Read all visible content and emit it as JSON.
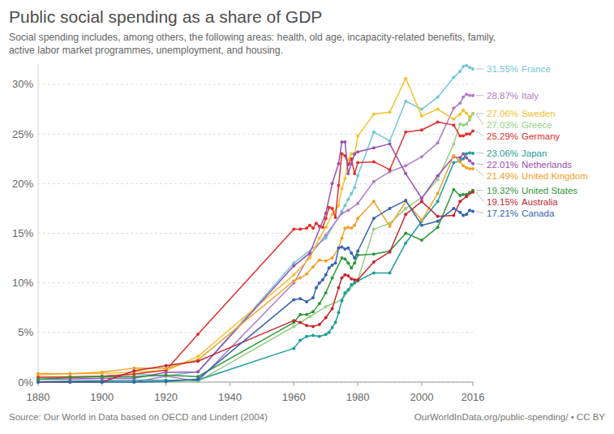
{
  "chart_data": {
    "type": "line",
    "title": "Public social spending as a share of GDP",
    "subtitle": [
      "Social spending includes, among others, the following areas: health, old age, incapacity-related benefits, family,",
      "active labor market programmes, unemployment, and housing."
    ],
    "annotations": [
      "Source: Our World in Data based on OECD and Lindert (2004)",
      "OurWorldInData.org/public-spending/ • CC BY"
    ],
    "xlim": [
      1880,
      2016
    ],
    "xticks": [
      1880,
      1900,
      1920,
      1940,
      1960,
      1980,
      2000,
      2016
    ],
    "ylim": [
      0,
      32
    ],
    "yticks": [
      {
        "value": 0,
        "label": "0%"
      },
      {
        "value": 5,
        "label": "5%"
      },
      {
        "value": 10,
        "label": "10%"
      },
      {
        "value": 15,
        "label": "15%"
      },
      {
        "value": 20,
        "label": "20%"
      },
      {
        "value": 25,
        "label": "25%"
      },
      {
        "value": 30,
        "label": "30%"
      }
    ],
    "grid": true,
    "marker": "circle",
    "series": [
      {
        "name": "France",
        "color": "#71c6d7",
        "x": [
          1880,
          1890,
          1900,
          1910,
          1920,
          1930,
          1960,
          1970,
          1975,
          1976,
          1977,
          1978,
          1979,
          1980,
          1985,
          1990,
          1995,
          2000,
          2005,
          2010,
          2012,
          2013,
          2014,
          2015,
          2016
        ],
        "values": [
          0.46,
          0.5,
          0.57,
          0.81,
          0.64,
          1.05,
          12.0,
          14.5,
          17.2,
          17.8,
          18.4,
          19.0,
          19.6,
          20.8,
          25.2,
          24.3,
          28.3,
          27.5,
          28.7,
          30.7,
          31.3,
          31.8,
          31.9,
          31.7,
          31.55
        ],
        "value_labels": [
          null,
          null,
          null,
          null,
          null,
          null,
          null,
          null,
          null,
          null,
          null,
          null,
          null,
          null,
          null,
          null,
          null,
          null,
          null,
          null,
          null,
          null,
          null,
          null,
          "31.55%"
        ]
      },
      {
        "name": "Italy",
        "color": "#b07cc6",
        "x": [
          1880,
          1890,
          1900,
          1910,
          1920,
          1930,
          1960,
          1965,
          1970,
          1975,
          1977,
          1980,
          1985,
          1990,
          1995,
          2000,
          2005,
          2010,
          2012,
          2013,
          2014,
          2015,
          2016
        ],
        "values": [
          0.0,
          0.0,
          0.0,
          0.0,
          0.6,
          0.08,
          10.0,
          12.8,
          14.8,
          17.0,
          17.3,
          18.0,
          20.2,
          21.2,
          21.8,
          22.7,
          24.1,
          27.6,
          28.1,
          28.7,
          29.0,
          28.9,
          28.87
        ],
        "value_labels": [
          null,
          null,
          null,
          null,
          null,
          null,
          null,
          null,
          null,
          null,
          null,
          null,
          null,
          null,
          null,
          null,
          null,
          null,
          null,
          null,
          null,
          null,
          "28.87%"
        ]
      },
      {
        "name": "Sweden",
        "color": "#f2c12e",
        "x": [
          1880,
          1890,
          1900,
          1910,
          1920,
          1930,
          1960,
          1965,
          1968,
          1970,
          1972,
          1974,
          1975,
          1976,
          1977,
          1978,
          1979,
          1980,
          1985,
          1990,
          1995,
          2000,
          2005,
          2010,
          2012,
          2013,
          2014,
          2015,
          2016
        ],
        "values": [
          0.72,
          0.85,
          0.85,
          1.03,
          1.14,
          2.59,
          10.8,
          12.5,
          14.5,
          15.6,
          16.9,
          17.8,
          19.5,
          20.5,
          22.4,
          23.0,
          22.9,
          24.8,
          27.0,
          27.2,
          30.6,
          26.8,
          27.5,
          26.5,
          27.0,
          27.4,
          27.1,
          26.7,
          27.06
        ],
        "value_labels": [
          null,
          null,
          null,
          null,
          null,
          null,
          null,
          null,
          null,
          null,
          null,
          null,
          null,
          null,
          null,
          null,
          null,
          null,
          null,
          null,
          null,
          null,
          null,
          null,
          null,
          null,
          null,
          null,
          "27.06%"
        ]
      },
      {
        "name": "Greece",
        "color": "#97cf86",
        "x": [
          1880,
          1890,
          1900,
          1910,
          1920,
          1930,
          1960,
          1965,
          1970,
          1975,
          1980,
          1985,
          1990,
          1995,
          2000,
          2005,
          2010,
          2012,
          2013,
          2014,
          2015,
          2016
        ],
        "values": [
          0.0,
          0.0,
          0.0,
          0.0,
          0.0,
          0.07,
          5.6,
          6.6,
          7.6,
          8.3,
          10.3,
          15.4,
          16.0,
          17.5,
          18.6,
          20.4,
          24.0,
          26.0,
          25.9,
          26.0,
          26.4,
          27.03
        ],
        "value_labels": [
          null,
          null,
          null,
          null,
          null,
          null,
          null,
          null,
          null,
          null,
          null,
          null,
          null,
          null,
          null,
          null,
          null,
          null,
          null,
          null,
          null,
          "27.03%"
        ]
      },
      {
        "name": "Germany",
        "color": "#e0302a",
        "x": [
          1880,
          1890,
          1900,
          1910,
          1920,
          1930,
          1960,
          1962,
          1964,
          1965,
          1966,
          1967,
          1968,
          1969,
          1970,
          1971,
          1972,
          1973,
          1974,
          1975,
          1976,
          1977,
          1978,
          1979,
          1980,
          1985,
          1990,
          1995,
          2000,
          2005,
          2010,
          2012,
          2013,
          2014,
          2015,
          2016
        ],
        "values": [
          0.5,
          0.53,
          0.59,
          0.8,
          1.2,
          4.82,
          15.4,
          15.4,
          15.5,
          15.8,
          15.5,
          16.0,
          15.7,
          15.6,
          16.5,
          17.6,
          17.5,
          16.6,
          19.8,
          23.0,
          22.8,
          21.9,
          22.5,
          21.0,
          22.1,
          22.2,
          21.4,
          25.2,
          25.4,
          26.2,
          25.9,
          24.8,
          24.8,
          25.0,
          25.0,
          25.29
        ],
        "value_labels": [
          null,
          null,
          null,
          null,
          null,
          null,
          null,
          null,
          null,
          null,
          null,
          null,
          null,
          null,
          null,
          null,
          null,
          null,
          null,
          null,
          null,
          null,
          null,
          null,
          null,
          null,
          null,
          null,
          null,
          null,
          null,
          null,
          null,
          null,
          null,
          "25.29%"
        ]
      },
      {
        "name": "Japan",
        "color": "#1f9c9c",
        "x": [
          1880,
          1890,
          1900,
          1910,
          1920,
          1930,
          1960,
          1962,
          1964,
          1966,
          1968,
          1970,
          1971,
          1972,
          1973,
          1974,
          1975,
          1976,
          1977,
          1978,
          1979,
          1980,
          1985,
          1990,
          1995,
          2000,
          2005,
          2010,
          2012,
          2013,
          2014,
          2015,
          2016
        ],
        "values": [
          0.05,
          0.11,
          0.17,
          0.18,
          0.18,
          0.21,
          3.4,
          4.2,
          4.6,
          4.7,
          4.6,
          4.8,
          5.0,
          5.5,
          6.0,
          7.0,
          8.2,
          9.0,
          9.3,
          9.8,
          10.0,
          10.2,
          11.0,
          11.0,
          14.0,
          16.2,
          18.2,
          22.1,
          22.3,
          22.5,
          23.0,
          23.1,
          23.06
        ],
        "value_labels": [
          null,
          null,
          null,
          null,
          null,
          null,
          null,
          null,
          null,
          null,
          null,
          null,
          null,
          null,
          null,
          null,
          null,
          null,
          null,
          null,
          null,
          null,
          null,
          null,
          null,
          null,
          null,
          null,
          null,
          null,
          null,
          null,
          "23.06%"
        ]
      },
      {
        "name": "Netherlands",
        "color": "#9a4fb0",
        "x": [
          1880,
          1890,
          1900,
          1910,
          1920,
          1930,
          1960,
          1965,
          1970,
          1972,
          1974,
          1975,
          1976,
          1977,
          1978,
          1979,
          1980,
          1985,
          1990,
          1995,
          2000,
          2005,
          2010,
          2012,
          2013,
          2014,
          2015,
          2016
        ],
        "values": [
          0.29,
          0.3,
          0.39,
          0.39,
          0.99,
          1.03,
          11.7,
          13.0,
          17.0,
          20.0,
          22.0,
          24.2,
          24.2,
          21.0,
          22.0,
          23.0,
          23.2,
          23.6,
          24.0,
          21.0,
          18.5,
          20.8,
          22.7,
          22.6,
          23.0,
          22.6,
          22.3,
          22.01
        ],
        "value_labels": [
          null,
          null,
          null,
          null,
          null,
          null,
          null,
          null,
          null,
          null,
          null,
          null,
          null,
          null,
          null,
          null,
          null,
          null,
          null,
          null,
          null,
          null,
          null,
          null,
          null,
          null,
          null,
          "22.01%"
        ]
      },
      {
        "name": "United Kingdom",
        "color": "#f0a12a",
        "x": [
          1880,
          1890,
          1900,
          1910,
          1920,
          1930,
          1960,
          1962,
          1964,
          1966,
          1968,
          1970,
          1972,
          1974,
          1975,
          1976,
          1977,
          1978,
          1979,
          1980,
          1985,
          1990,
          1995,
          2000,
          2005,
          2010,
          2012,
          2013,
          2014,
          2015,
          2016
        ],
        "values": [
          0.86,
          0.83,
          1.0,
          1.4,
          1.39,
          2.24,
          10.2,
          10.5,
          10.9,
          11.6,
          12.3,
          12.2,
          12.5,
          13.5,
          14.5,
          15.5,
          15.6,
          15.5,
          15.8,
          16.5,
          18.2,
          15.7,
          18.2,
          16.3,
          19.0,
          22.8,
          22.2,
          21.8,
          21.6,
          21.5,
          21.49
        ],
        "value_labels": [
          null,
          null,
          null,
          null,
          null,
          null,
          null,
          null,
          null,
          null,
          null,
          null,
          null,
          null,
          null,
          null,
          null,
          null,
          null,
          null,
          null,
          null,
          null,
          null,
          null,
          null,
          null,
          null,
          null,
          null,
          "21.49%"
        ]
      },
      {
        "name": "United States",
        "color": "#2e973a",
        "x": [
          1880,
          1890,
          1900,
          1910,
          1920,
          1930,
          1960,
          1962,
          1964,
          1966,
          1968,
          1970,
          1972,
          1975,
          1976,
          1977,
          1978,
          1979,
          1980,
          1985,
          1990,
          1995,
          2000,
          2005,
          2010,
          2012,
          2013,
          2014,
          2015,
          2016
        ],
        "values": [
          0.29,
          0.45,
          0.55,
          0.56,
          0.7,
          0.56,
          6.0,
          6.8,
          6.8,
          7.1,
          7.9,
          9.0,
          10.5,
          12.5,
          12.4,
          12.0,
          11.5,
          12.0,
          12.8,
          12.9,
          13.2,
          15.0,
          14.3,
          15.6,
          19.4,
          18.8,
          18.9,
          18.9,
          19.1,
          19.32
        ],
        "value_labels": [
          null,
          null,
          null,
          null,
          null,
          null,
          null,
          null,
          null,
          null,
          null,
          null,
          null,
          null,
          null,
          null,
          null,
          null,
          null,
          null,
          null,
          null,
          null,
          null,
          null,
          null,
          null,
          null,
          null,
          "19.32%"
        ]
      },
      {
        "name": "Australia",
        "color": "#c4262e",
        "x": [
          1880,
          1890,
          1900,
          1910,
          1920,
          1930,
          1960,
          1962,
          1964,
          1966,
          1968,
          1970,
          1972,
          1974,
          1975,
          1976,
          1977,
          1978,
          1979,
          1980,
          1985,
          1990,
          1995,
          2000,
          2005,
          2010,
          2012,
          2014,
          2016
        ],
        "values": [
          0.0,
          0.0,
          0.0,
          1.12,
          1.66,
          2.11,
          6.2,
          6.0,
          5.7,
          5.6,
          5.8,
          6.5,
          7.4,
          9.5,
          10.5,
          10.8,
          10.7,
          10.4,
          10.3,
          10.3,
          12.1,
          13.1,
          16.9,
          18.2,
          16.7,
          16.8,
          18.2,
          18.7,
          19.15
        ],
        "value_labels": [
          null,
          null,
          null,
          null,
          null,
          null,
          null,
          null,
          null,
          null,
          null,
          null,
          null,
          null,
          null,
          null,
          null,
          null,
          null,
          null,
          null,
          null,
          null,
          null,
          null,
          null,
          null,
          null,
          "19.15%"
        ]
      },
      {
        "name": "Canada",
        "color": "#3663ae",
        "x": [
          1880,
          1890,
          1900,
          1910,
          1920,
          1930,
          1960,
          1962,
          1964,
          1966,
          1967,
          1968,
          1969,
          1970,
          1971,
          1972,
          1973,
          1974,
          1975,
          1976,
          1977,
          1978,
          1979,
          1980,
          1985,
          1990,
          1995,
          2000,
          2005,
          2010,
          2012,
          2013,
          2014,
          2015,
          2016
        ],
        "values": [
          0.0,
          0.0,
          0.0,
          0.0,
          0.06,
          0.31,
          8.3,
          8.4,
          8.1,
          8.5,
          9.5,
          10.0,
          10.3,
          10.8,
          11.5,
          11.8,
          12.0,
          13.5,
          13.6,
          13.4,
          13.5,
          13.0,
          12.5,
          13.2,
          16.5,
          17.5,
          18.3,
          15.8,
          16.2,
          17.5,
          17.1,
          16.8,
          16.9,
          17.3,
          17.21
        ],
        "value_labels": [
          null,
          null,
          null,
          null,
          null,
          null,
          null,
          null,
          null,
          null,
          null,
          null,
          null,
          null,
          null,
          null,
          null,
          null,
          null,
          null,
          null,
          null,
          null,
          null,
          null,
          null,
          null,
          null,
          null,
          null,
          null,
          null,
          null,
          null,
          "17.21%"
        ]
      }
    ]
  }
}
